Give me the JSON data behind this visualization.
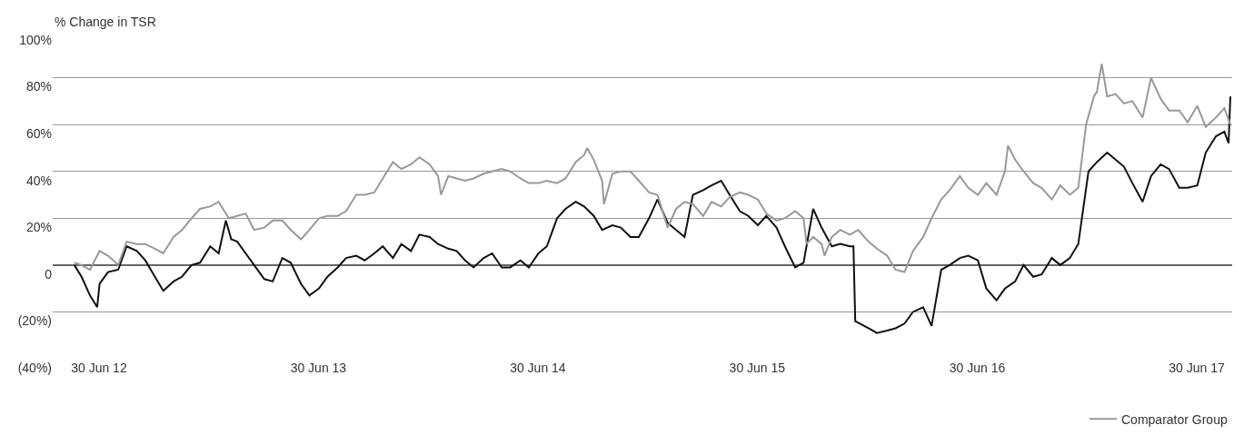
{
  "chart_data": {
    "type": "line",
    "ylabel": "% Change in TSR",
    "xlim": [
      "2012-04-14",
      "2017-08-28"
    ],
    "xticks": [
      {
        "value": "2012-06-30",
        "label": "30 Jun 12"
      },
      {
        "value": "2013-06-30",
        "label": "30 Jun 13"
      },
      {
        "value": "2014-06-30",
        "label": "30 Jun 14"
      },
      {
        "value": "2015-06-30",
        "label": "30 Jun 15"
      },
      {
        "value": "2016-06-30",
        "label": "30 Jun 16"
      },
      {
        "value": "2017-06-30",
        "label": "30 Jun 17"
      }
    ],
    "ylim": [
      -40,
      100
    ],
    "yticks": [
      {
        "value": -40,
        "label": "(40%)"
      },
      {
        "value": -20,
        "label": "(20%)"
      },
      0,
      {
        "value": 20,
        "label": "20%"
      },
      {
        "value": 40,
        "label": "40%"
      },
      {
        "value": 60,
        "label": "60%"
      },
      {
        "value": 80,
        "label": "80%"
      },
      {
        "value": 100,
        "label": "100%"
      }
    ],
    "grid": "y",
    "legend": "bottom right",
    "marker": "none",
    "line_style": "solid",
    "series": [
      {
        "color": "#111111",
        "x": [
          "2012-05-20",
          "2012-06-01",
          "2012-06-15",
          "2012-06-27",
          "2012-07-01",
          "2012-07-15",
          "2012-08-01",
          "2012-08-15",
          "2012-09-01",
          "2012-09-15",
          "2012-10-01",
          "2012-10-15",
          "2012-11-01",
          "2012-11-15",
          "2012-12-01",
          "2012-12-15",
          "2013-01-01",
          "2013-01-15",
          "2013-01-27",
          "2013-02-05",
          "2013-02-15",
          "2013-03-01",
          "2013-03-15",
          "2013-04-01",
          "2013-04-15",
          "2013-05-01",
          "2013-05-15",
          "2013-06-01",
          "2013-06-15",
          "2013-07-01",
          "2013-07-15",
          "2013-08-01",
          "2013-08-15",
          "2013-09-01",
          "2013-09-15",
          "2013-10-01",
          "2013-10-15",
          "2013-11-01",
          "2013-11-15",
          "2013-12-01",
          "2013-12-15",
          "2014-01-01",
          "2014-01-15",
          "2014-02-01",
          "2014-02-15",
          "2014-03-01",
          "2014-03-15",
          "2014-04-01",
          "2014-04-15",
          "2014-05-01",
          "2014-05-15",
          "2014-06-01",
          "2014-06-15",
          "2014-07-01",
          "2014-07-15",
          "2014-08-01",
          "2014-08-15",
          "2014-09-01",
          "2014-09-15",
          "2014-10-01",
          "2014-10-15",
          "2014-11-01",
          "2014-11-15",
          "2014-12-01",
          "2014-12-15",
          "2015-01-01",
          "2015-01-15",
          "2015-02-01",
          "2015-02-15",
          "2015-03-01",
          "2015-03-15",
          "2015-04-01",
          "2015-04-15",
          "2015-05-01",
          "2015-05-15",
          "2015-06-01",
          "2015-06-15",
          "2015-07-01",
          "2015-07-15",
          "2015-08-01",
          "2015-08-15",
          "2015-09-01",
          "2015-09-15",
          "2015-10-01",
          "2015-10-15",
          "2015-11-01",
          "2015-11-15",
          "2015-12-01",
          "2015-12-07",
          "2015-12-10",
          "2016-01-01",
          "2016-01-15",
          "2016-02-01",
          "2016-02-15",
          "2016-03-01",
          "2016-03-15",
          "2016-04-01",
          "2016-04-15",
          "2016-05-01",
          "2016-05-15",
          "2016-06-01",
          "2016-06-15",
          "2016-07-01",
          "2016-07-15",
          "2016-08-01",
          "2016-08-15",
          "2016-09-01",
          "2016-09-15",
          "2016-10-01",
          "2016-10-15",
          "2016-11-01",
          "2016-11-15",
          "2016-12-01",
          "2016-12-15",
          "2017-01-01",
          "2017-01-15",
          "2017-02-01",
          "2017-02-15",
          "2017-03-01",
          "2017-03-15",
          "2017-04-01",
          "2017-04-15",
          "2017-05-01",
          "2017-05-15",
          "2017-06-01",
          "2017-06-15",
          "2017-07-01",
          "2017-07-15",
          "2017-08-01",
          "2017-08-15",
          "2017-08-22",
          "2017-08-25"
        ],
        "values": [
          0,
          -5,
          -13,
          -18,
          -8,
          -3,
          -2,
          8,
          6,
          2,
          -5,
          -11,
          -7,
          -5,
          0,
          1,
          8,
          5,
          19,
          11,
          10,
          5,
          0,
          -6,
          -7,
          3,
          1,
          -8,
          -13,
          -10,
          -5,
          -1,
          3,
          4,
          2,
          5,
          8,
          3,
          9,
          6,
          13,
          12,
          9,
          7,
          6,
          2,
          -1,
          3,
          5,
          -1,
          -1,
          2,
          -1,
          5,
          8,
          20,
          24,
          27,
          25,
          21,
          15,
          17,
          16,
          12,
          12,
          20,
          28,
          18,
          15,
          12,
          30,
          32,
          34,
          36,
          30,
          23,
          21,
          17,
          21,
          16,
          8,
          -1,
          1,
          24,
          16,
          8,
          9,
          8,
          8,
          -24,
          -27,
          -29,
          -28,
          -27,
          -25,
          -20,
          -18,
          -26,
          -2,
          0,
          3,
          4,
          2,
          -10,
          -15,
          -10,
          -7,
          0,
          -5,
          -4,
          3,
          0,
          3,
          9,
          40,
          44,
          48,
          45,
          42,
          35,
          27,
          38,
          43,
          41,
          33,
          33,
          34,
          48,
          55,
          57,
          52,
          72
        ]
      },
      {
        "name": "Comparator Group",
        "color": "#999999",
        "x": [
          "2012-05-20",
          "2012-06-01",
          "2012-06-15",
          "2012-07-01",
          "2012-07-15",
          "2012-08-01",
          "2012-08-15",
          "2012-09-01",
          "2012-09-15",
          "2012-10-01",
          "2012-10-15",
          "2012-11-01",
          "2012-11-15",
          "2012-12-01",
          "2012-12-15",
          "2013-01-01",
          "2013-01-15",
          "2013-02-01",
          "2013-02-15",
          "2013-03-01",
          "2013-03-15",
          "2013-04-01",
          "2013-04-15",
          "2013-05-01",
          "2013-05-15",
          "2013-06-01",
          "2013-06-15",
          "2013-07-01",
          "2013-07-15",
          "2013-08-01",
          "2013-08-15",
          "2013-09-01",
          "2013-09-15",
          "2013-10-01",
          "2013-10-15",
          "2013-11-01",
          "2013-11-15",
          "2013-12-01",
          "2013-12-15",
          "2014-01-01",
          "2014-01-15",
          "2014-01-20",
          "2014-02-01",
          "2014-02-15",
          "2014-03-01",
          "2014-03-15",
          "2014-04-01",
          "2014-04-15",
          "2014-05-01",
          "2014-05-15",
          "2014-06-01",
          "2014-06-15",
          "2014-07-01",
          "2014-07-15",
          "2014-08-01",
          "2014-08-15",
          "2014-09-01",
          "2014-09-15",
          "2014-09-20",
          "2014-10-01",
          "2014-10-15",
          "2014-10-18",
          "2014-11-01",
          "2014-11-15",
          "2014-12-01",
          "2014-12-15",
          "2015-01-01",
          "2015-01-15",
          "2015-02-01",
          "2015-02-15",
          "2015-03-01",
          "2015-03-15",
          "2015-04-01",
          "2015-04-15",
          "2015-05-01",
          "2015-05-15",
          "2015-06-01",
          "2015-06-15",
          "2015-07-01",
          "2015-07-15",
          "2015-08-01",
          "2015-08-15",
          "2015-09-01",
          "2015-09-15",
          "2015-09-20",
          "2015-10-01",
          "2015-10-15",
          "2015-10-20",
          "2015-11-01",
          "2015-11-15",
          "2015-12-01",
          "2015-12-15",
          "2016-01-01",
          "2016-01-15",
          "2016-02-01",
          "2016-02-15",
          "2016-03-01",
          "2016-03-15",
          "2016-04-01",
          "2016-04-15",
          "2016-05-01",
          "2016-05-15",
          "2016-06-01",
          "2016-06-15",
          "2016-07-01",
          "2016-07-15",
          "2016-08-01",
          "2016-08-15",
          "2016-08-20",
          "2016-09-01",
          "2016-09-15",
          "2016-10-01",
          "2016-10-15",
          "2016-11-01",
          "2016-11-15",
          "2016-12-01",
          "2016-12-15",
          "2016-12-28",
          "2017-01-10",
          "2017-01-15",
          "2017-01-23",
          "2017-02-01",
          "2017-02-15",
          "2017-03-01",
          "2017-03-15",
          "2017-04-01",
          "2017-04-15",
          "2017-05-01",
          "2017-05-15",
          "2017-06-01",
          "2017-06-15",
          "2017-07-01",
          "2017-07-15",
          "2017-08-01",
          "2017-08-15",
          "2017-08-25"
        ],
        "values": [
          1,
          0,
          -2,
          6,
          4,
          0,
          10,
          9,
          9,
          7,
          5,
          12,
          15,
          20,
          24,
          25,
          27,
          20,
          21,
          22,
          15,
          16,
          19,
          19,
          15,
          11,
          15,
          20,
          21,
          21,
          23,
          30,
          30,
          31,
          37,
          44,
          41,
          43,
          46,
          43,
          38,
          30,
          38,
          37,
          36,
          37,
          39,
          40,
          41,
          40,
          37,
          35,
          35,
          36,
          35,
          37,
          44,
          47,
          50,
          45,
          36,
          26,
          39,
          40,
          40,
          36,
          31,
          30,
          16,
          24,
          27,
          26,
          21,
          27,
          25,
          29,
          31,
          30,
          28,
          22,
          19,
          20,
          23,
          20,
          9,
          12,
          9,
          4,
          12,
          15,
          13,
          15,
          10,
          7,
          4,
          -2,
          -3,
          6,
          12,
          20,
          28,
          32,
          38,
          33,
          30,
          35,
          30,
          40,
          51,
          45,
          40,
          35,
          33,
          28,
          34,
          30,
          33,
          60,
          72,
          74,
          86,
          72,
          73,
          69,
          70,
          63,
          80,
          71,
          66,
          66,
          61,
          68,
          59,
          63,
          67,
          60
        ]
      }
    ]
  }
}
